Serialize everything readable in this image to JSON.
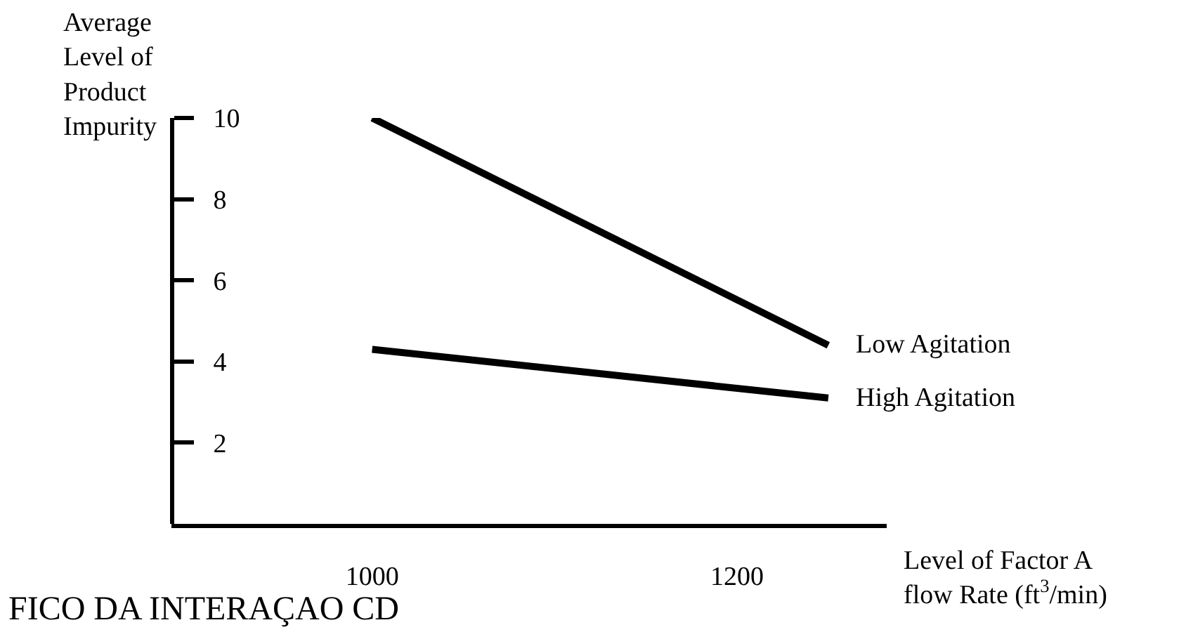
{
  "chart_data": {
    "type": "line",
    "xlabel": "Level of Factor A\nflow Rate (ft$^{3}$/min)",
    "ylabel": "Average\nLevel of\nProduct\nImpurity",
    "x": [
      1000,
      1250
    ],
    "xlim": [
      890,
      1282
    ],
    "xticks": [
      1000,
      1200
    ],
    "ylim": [
      0,
      10
    ],
    "yticks": [
      2,
      4,
      6,
      8,
      10
    ],
    "series": [
      {
        "name": "Low Agitation",
        "color": "#000000",
        "values": [
          10,
          4.4
        ]
      },
      {
        "name": "High Agitation",
        "color": "#000000",
        "values": [
          4.3,
          3.1
        ]
      }
    ],
    "legend": false,
    "marker": "none",
    "line_style": "solid",
    "annotations": [
      "FICO DA INTERAÇAO CD"
    ]
  }
}
